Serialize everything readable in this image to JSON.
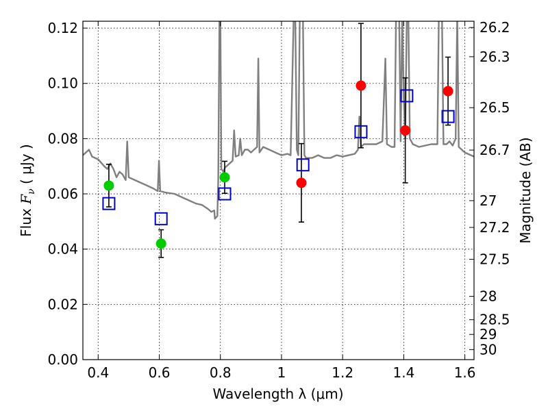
{
  "chart_data": {
    "type": "scatter",
    "title": "",
    "xlabel": "Wavelength  λ (μm)",
    "ylabel_prefix": "Flux  ",
    "ylabel_symbol": "F",
    "ylabel_subscript": "ν",
    "ylabel_unit": "  ( μJy )",
    "y2label": "Magnitude (AB)",
    "xlim": [
      0.35,
      1.63
    ],
    "ylim": [
      0.0,
      0.1225
    ],
    "grid": true,
    "xticks": [
      {
        "value": 0.4,
        "label": "0.4"
      },
      {
        "value": 0.6,
        "label": "0.6"
      },
      {
        "value": 0.8,
        "label": "0.8"
      },
      {
        "value": 1.0,
        "label": "1"
      },
      {
        "value": 1.2,
        "label": "1.2"
      },
      {
        "value": 1.4,
        "label": "1.4"
      },
      {
        "value": 1.6,
        "label": "1.6"
      }
    ],
    "yticks": [
      {
        "value": 0.0,
        "label": "0.00"
      },
      {
        "value": 0.02,
        "label": "0.02"
      },
      {
        "value": 0.04,
        "label": "0.04"
      },
      {
        "value": 0.06,
        "label": "0.06"
      },
      {
        "value": 0.08,
        "label": "0.08"
      },
      {
        "value": 0.1,
        "label": "0.10"
      },
      {
        "value": 0.12,
        "label": "0.12"
      }
    ],
    "magnitude_ticks": [
      {
        "mag": 26.2,
        "label": "26.2"
      },
      {
        "mag": 26.3,
        "label": "26.3"
      },
      {
        "mag": 26.5,
        "label": "26.5"
      },
      {
        "mag": 26.7,
        "label": "26.7"
      },
      {
        "mag": 27.0,
        "label": "27"
      },
      {
        "mag": 27.2,
        "label": "27.2"
      },
      {
        "mag": 27.5,
        "label": "27.5"
      },
      {
        "mag": 28.0,
        "label": "28"
      },
      {
        "mag": 28.5,
        "label": "28.5"
      },
      {
        "mag": 29.0,
        "label": "29"
      },
      {
        "mag": 30.0,
        "label": "30"
      }
    ],
    "series": [
      {
        "name": "observed-green",
        "color": "#00cc00",
        "marker": "circle",
        "points": [
          {
            "x": 0.435,
            "y": 0.063,
            "yerr": 0.0077
          },
          {
            "x": 0.606,
            "y": 0.042,
            "yerr": 0.005
          },
          {
            "x": 0.814,
            "y": 0.066,
            "yerr": 0.0058
          }
        ]
      },
      {
        "name": "observed-red",
        "color": "#ff0000",
        "marker": "circle",
        "points": [
          {
            "x": 1.065,
            "y": 0.064,
            "yerr": 0.0142
          },
          {
            "x": 1.26,
            "y": 0.0992,
            "yerr": 0.0225
          },
          {
            "x": 1.405,
            "y": 0.083,
            "yerr": 0.019
          },
          {
            "x": 1.545,
            "y": 0.0972,
            "yerr": 0.0123
          }
        ]
      },
      {
        "name": "model-photometry",
        "color": "#0000cc",
        "marker": "square",
        "points": [
          {
            "x": 0.435,
            "y": 0.0565
          },
          {
            "x": 0.606,
            "y": 0.051
          },
          {
            "x": 0.814,
            "y": 0.06
          },
          {
            "x": 1.07,
            "y": 0.0705
          },
          {
            "x": 1.26,
            "y": 0.0825
          },
          {
            "x": 1.41,
            "y": 0.0955
          },
          {
            "x": 1.545,
            "y": 0.088
          }
        ]
      },
      {
        "name": "model-spectrum",
        "color": "#7f7f7f",
        "marker": "line",
        "points": [
          [
            0.35,
            0.074
          ],
          [
            0.37,
            0.076
          ],
          [
            0.38,
            0.0735
          ],
          [
            0.4,
            0.0725
          ],
          [
            0.42,
            0.07
          ],
          [
            0.43,
            0.069
          ],
          [
            0.44,
            0.071
          ],
          [
            0.45,
            0.069
          ],
          [
            0.46,
            0.066
          ],
          [
            0.47,
            0.068
          ],
          [
            0.48,
            0.067
          ],
          [
            0.49,
            0.065
          ],
          [
            0.495,
            0.079
          ],
          [
            0.5,
            0.066
          ],
          [
            0.52,
            0.065
          ],
          [
            0.55,
            0.0635
          ],
          [
            0.58,
            0.062
          ],
          [
            0.595,
            0.061
          ],
          [
            0.599,
            0.072
          ],
          [
            0.603,
            0.061
          ],
          [
            0.62,
            0.0605
          ],
          [
            0.65,
            0.06
          ],
          [
            0.68,
            0.0585
          ],
          [
            0.7,
            0.0575
          ],
          [
            0.72,
            0.0565
          ],
          [
            0.74,
            0.056
          ],
          [
            0.76,
            0.0545
          ],
          [
            0.77,
            0.0535
          ],
          [
            0.78,
            0.054
          ],
          [
            0.782,
            0.051
          ],
          [
            0.79,
            0.052
          ],
          [
            0.793,
            0.065
          ],
          [
            0.797,
            0.125
          ],
          [
            0.8,
            0.125
          ],
          [
            0.803,
            0.069
          ],
          [
            0.81,
            0.068
          ],
          [
            0.815,
            0.0695
          ],
          [
            0.82,
            0.07
          ],
          [
            0.83,
            0.071
          ],
          [
            0.84,
            0.072
          ],
          [
            0.845,
            0.083
          ],
          [
            0.85,
            0.0735
          ],
          [
            0.86,
            0.074
          ],
          [
            0.865,
            0.08
          ],
          [
            0.87,
            0.074
          ],
          [
            0.88,
            0.076
          ],
          [
            0.89,
            0.076
          ],
          [
            0.9,
            0.075
          ],
          [
            0.91,
            0.076
          ],
          [
            0.92,
            0.077
          ],
          [
            0.924,
            0.109
          ],
          [
            0.928,
            0.075
          ],
          [
            0.94,
            0.077
          ],
          [
            0.96,
            0.076
          ],
          [
            0.98,
            0.075
          ],
          [
            1.0,
            0.074
          ],
          [
            1.02,
            0.0745
          ],
          [
            1.03,
            0.074
          ],
          [
            1.035,
            0.1
          ],
          [
            1.04,
            0.125
          ],
          [
            1.045,
            0.125
          ],
          [
            1.05,
            0.076
          ],
          [
            1.055,
            0.074
          ],
          [
            1.06,
            0.125
          ],
          [
            1.07,
            0.125
          ],
          [
            1.075,
            0.074
          ],
          [
            1.08,
            0.073
          ],
          [
            1.1,
            0.073
          ],
          [
            1.12,
            0.074
          ],
          [
            1.14,
            0.073
          ],
          [
            1.16,
            0.073
          ],
          [
            1.18,
            0.074
          ],
          [
            1.2,
            0.0735
          ],
          [
            1.22,
            0.074
          ],
          [
            1.24,
            0.0745
          ],
          [
            1.25,
            0.076
          ],
          [
            1.255,
            0.088
          ],
          [
            1.26,
            0.077
          ],
          [
            1.27,
            0.078
          ],
          [
            1.29,
            0.078
          ],
          [
            1.31,
            0.078
          ],
          [
            1.33,
            0.079
          ],
          [
            1.34,
            0.109
          ],
          [
            1.345,
            0.078
          ],
          [
            1.36,
            0.077
          ],
          [
            1.37,
            0.077
          ],
          [
            1.375,
            0.125
          ],
          [
            1.385,
            0.125
          ],
          [
            1.39,
            0.079
          ],
          [
            1.395,
            0.125
          ],
          [
            1.4,
            0.095
          ],
          [
            1.405,
            0.08
          ],
          [
            1.41,
            0.125
          ],
          [
            1.415,
            0.125
          ],
          [
            1.42,
            0.08
          ],
          [
            1.43,
            0.078
          ],
          [
            1.45,
            0.077
          ],
          [
            1.47,
            0.0775
          ],
          [
            1.49,
            0.078
          ],
          [
            1.51,
            0.078
          ],
          [
            1.515,
            0.125
          ],
          [
            1.525,
            0.125
          ],
          [
            1.53,
            0.078
          ],
          [
            1.54,
            0.078
          ],
          [
            1.55,
            0.079
          ],
          [
            1.56,
            0.0775
          ],
          [
            1.57,
            0.08
          ],
          [
            1.575,
            0.125
          ],
          [
            1.58,
            0.077
          ],
          [
            1.6,
            0.075
          ],
          [
            1.63,
            0.0735
          ]
        ]
      }
    ]
  }
}
